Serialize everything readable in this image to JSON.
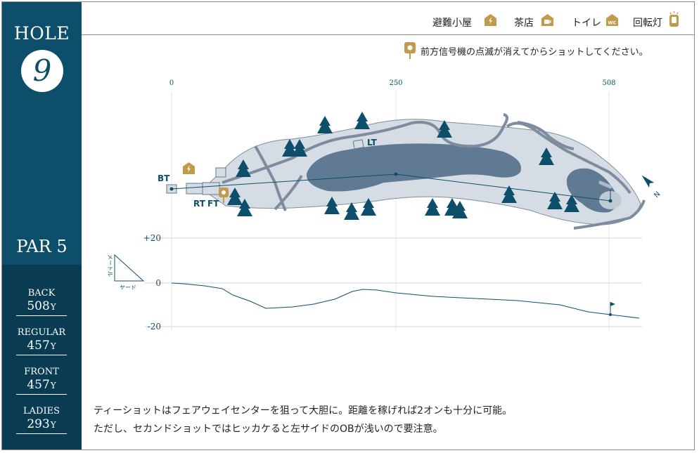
{
  "sidebar": {
    "hole_label": "HOLE",
    "hole_number": "9",
    "par_label": "PAR 5",
    "tees": [
      {
        "name": "BACK",
        "distance": "508",
        "unit": "Y"
      },
      {
        "name": "REGULAR",
        "distance": "457",
        "unit": "Y"
      },
      {
        "name": "FRONT",
        "distance": "457",
        "unit": "Y"
      },
      {
        "name": "LADIES",
        "distance": "293",
        "unit": "Y"
      }
    ]
  },
  "legend": [
    {
      "label": "避難小屋",
      "icon": "lightning-hut-icon"
    },
    {
      "label": "茶店",
      "icon": "teahouse-icon"
    },
    {
      "label": "トイレ",
      "icon": "toilet-icon",
      "badge": "WC"
    },
    {
      "label": "回転灯",
      "icon": "rotating-light-icon"
    }
  ],
  "notice": "前方信号機の点滅が消えてからショットしてください。",
  "distance_axis": {
    "ticks": [
      "0",
      "250",
      "508"
    ]
  },
  "tee_labels": {
    "bt": "BT",
    "rt": "RT",
    "ft": "FT",
    "lt": "LT"
  },
  "elevation": {
    "ticks": [
      "+20",
      "0",
      "-20"
    ],
    "meter_label": "メートル",
    "yard_label": "ヤード"
  },
  "north_label": "N",
  "description": [
    "ティーショットはフェアウェイセンターを狙って大胆に。距離を稼げれば2オンも十分に可能。",
    "ただし、セカンドショットではヒッカケると左サイドのOBが浅いので要注意。"
  ],
  "colors": {
    "sidebar": "#0d4f6a",
    "sidebar_dark": "#093c52",
    "gold": "#c29a4c",
    "rough": "#d5dce4",
    "fairway": "#5f7a92",
    "tree": "#0d4f6a",
    "path": "#7d8d9f"
  }
}
